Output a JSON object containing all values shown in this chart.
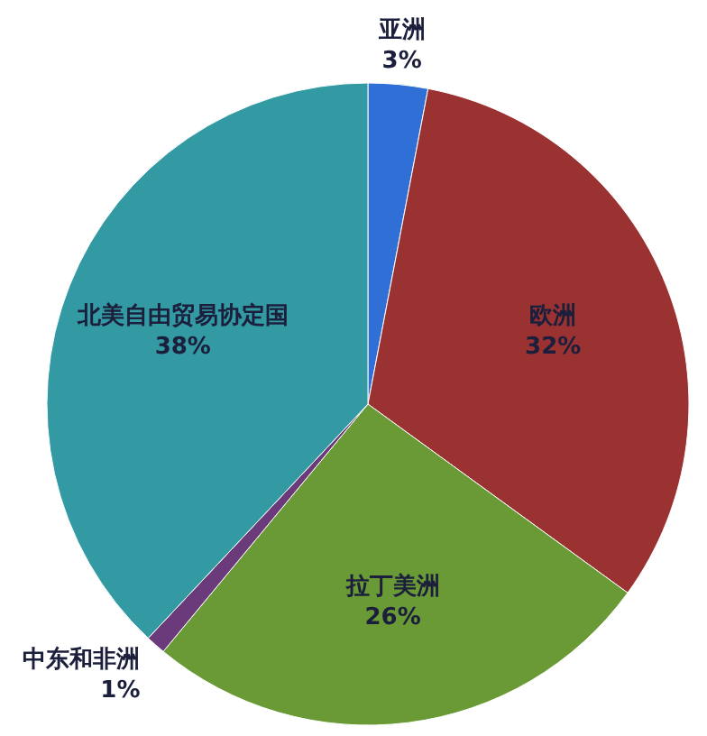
{
  "chart_data": {
    "type": "pie",
    "categories": [
      "亚洲",
      "欧洲",
      "拉丁美洲",
      "中东和非洲",
      "北美自由贸易协定国"
    ],
    "values": [
      3,
      32,
      26,
      1,
      38
    ],
    "colors": [
      "#2f6fd6",
      "#9a3232",
      "#6a9a36",
      "#6b3a7a",
      "#3399a3"
    ],
    "value_labels": [
      "3%",
      "32%",
      "26%",
      "1%",
      "38%"
    ]
  }
}
